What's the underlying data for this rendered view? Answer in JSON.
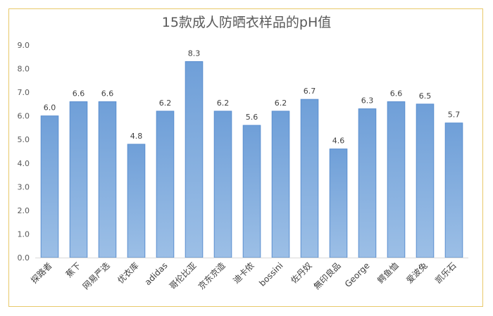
{
  "chart_data": {
    "type": "bar",
    "title": "15款成人防晒衣样品的pH值",
    "xlabel": "",
    "ylabel": "",
    "ylim": [
      0,
      9.0
    ],
    "y_tick_step": 1.0,
    "y_ticks": [
      "0.0",
      "1.0",
      "2.0",
      "3.0",
      "4.0",
      "5.0",
      "6.0",
      "7.0",
      "8.0",
      "9.0"
    ],
    "grid": false,
    "legend": "none",
    "bar_color": "#7aa7dd",
    "bar_edge_color": "#5b8fd0",
    "categories": [
      "探路者",
      "蕉下",
      "网易严选",
      "优衣库",
      "adidas",
      "哥伦比亚",
      "京东京造",
      "迪卡侬",
      "bossini",
      "佐丹奴",
      "無印良品",
      "George",
      "鳄鱼恤",
      "爱波兔",
      "凯乐石"
    ],
    "values": [
      6.0,
      6.6,
      6.6,
      4.8,
      6.2,
      8.3,
      6.2,
      5.6,
      6.2,
      6.7,
      4.6,
      6.3,
      6.6,
      6.5,
      5.7
    ],
    "data_labels": [
      "6.0",
      "6.6",
      "6.6",
      "4.8",
      "6.2",
      "8.3",
      "6.2",
      "5.6",
      "6.2",
      "6.7",
      "4.6",
      "6.3",
      "6.6",
      "6.5",
      "5.7"
    ]
  }
}
